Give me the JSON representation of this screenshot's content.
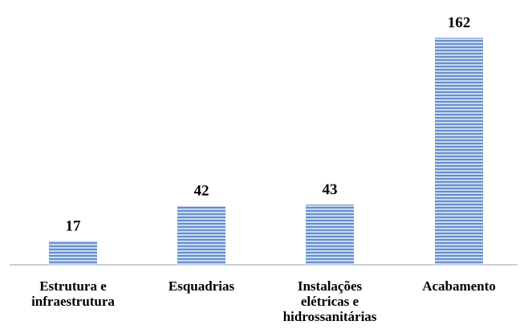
{
  "chart_data": {
    "type": "bar",
    "title": "",
    "xlabel": "",
    "ylabel": "",
    "categories": [
      [
        "Estrutura e",
        "infraestrutura"
      ],
      [
        "Esquadrias"
      ],
      [
        "Instalações",
        "elétricas e",
        "hidrossanitárias"
      ],
      [
        "Acabamento"
      ]
    ],
    "values": [
      17,
      42,
      43,
      162
    ],
    "ylim": [
      0,
      175
    ],
    "grid": false,
    "legend": "none",
    "colors": {
      "bar_stripe_light": "#c7d7ef",
      "bar_stripe_dark": "#4f7fc4",
      "axis": "#bfbfbf",
      "text": "#000000"
    }
  }
}
